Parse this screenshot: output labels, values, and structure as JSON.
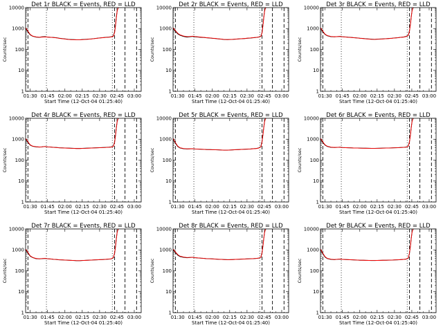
{
  "chart_data": {
    "type": "line",
    "shared": {
      "title_suffix": "BLACK = Events, RED = LLD",
      "ylabel": "Counts/sec",
      "xlabel": "Start Time (12-Oct-04 01:25:40)",
      "x_tick_labels": [
        "01:30",
        "01:45",
        "02:00",
        "02:15",
        "02:30",
        "02:45",
        "03:00"
      ],
      "x_tick_minutes": [
        90,
        105,
        120,
        135,
        150,
        165,
        180
      ],
      "xlim_minutes": [
        86,
        186
      ],
      "yscale": "log",
      "ylim": [
        1,
        10000
      ],
      "y_tick_labels": [
        "1",
        "10",
        "100",
        "1000",
        "10000"
      ],
      "y_tick_values": [
        1,
        10,
        100,
        1000,
        10000
      ],
      "vertical_lines": [
        {
          "minute": 88,
          "style": "dashed"
        },
        {
          "minute": 104,
          "style": "dotted"
        },
        {
          "minute": 161,
          "style": "dotted"
        },
        {
          "minute": 163,
          "style": "dashed"
        },
        {
          "minute": 172,
          "style": "dashed"
        },
        {
          "minute": 182,
          "style": "dashed"
        }
      ],
      "series_names": [
        "Events",
        "LLD"
      ],
      "colors": {
        "Events": "#000000",
        "LLD": "#ff0000"
      },
      "x_minutes": [
        86,
        88,
        90,
        92,
        95,
        98,
        100,
        103,
        105,
        108,
        110,
        113,
        115,
        118,
        120,
        123,
        125,
        128,
        130,
        133,
        135,
        138,
        140,
        143,
        145,
        148,
        150,
        153,
        155,
        158,
        160,
        162,
        163,
        163.8,
        164.5,
        165.2,
        165.8,
        166.3
      ]
    },
    "panels": [
      {
        "title": "Det 1r",
        "events": [
          1000,
          700,
          500,
          430,
          390,
          380,
          400,
          410,
          390,
          380,
          375,
          360,
          345,
          330,
          320,
          305,
          300,
          295,
          290,
          290,
          300,
          305,
          310,
          320,
          330,
          345,
          355,
          370,
          380,
          390,
          400,
          450,
          700,
          1500,
          3500,
          7000,
          9000,
          10000
        ],
        "lld": [
          1100,
          750,
          520,
          440,
          400,
          385,
          390,
          395,
          390,
          380,
          370,
          355,
          340,
          325,
          315,
          300,
          295,
          292,
          288,
          288,
          295,
          300,
          308,
          318,
          328,
          342,
          352,
          365,
          375,
          385,
          395,
          430,
          650,
          1400,
          3300,
          6800,
          9000,
          10000
        ]
      },
      {
        "title": "Det 2r",
        "events": [
          1000,
          750,
          560,
          480,
          420,
          390,
          400,
          420,
          400,
          390,
          380,
          370,
          360,
          350,
          340,
          330,
          320,
          310,
          300,
          295,
          300,
          305,
          310,
          320,
          325,
          330,
          340,
          350,
          360,
          375,
          390,
          430,
          650,
          1500,
          3500,
          7000,
          9000,
          10000
        ],
        "lld": [
          1100,
          800,
          600,
          500,
          440,
          410,
          415,
          430,
          415,
          400,
          390,
          378,
          365,
          355,
          345,
          335,
          325,
          312,
          302,
          298,
          300,
          305,
          312,
          322,
          328,
          335,
          345,
          355,
          365,
          378,
          392,
          420,
          620,
          1400,
          3300,
          6800,
          9000,
          10000
        ]
      },
      {
        "title": "Det 3r",
        "events": [
          1000,
          700,
          520,
          450,
          410,
          400,
          410,
          420,
          405,
          395,
          385,
          375,
          365,
          355,
          345,
          335,
          325,
          315,
          310,
          305,
          310,
          315,
          320,
          328,
          335,
          345,
          355,
          365,
          380,
          395,
          420,
          480,
          800,
          1600,
          3600,
          7000,
          9000,
          10000
        ],
        "lld": [
          1100,
          750,
          540,
          460,
          420,
          405,
          412,
          418,
          402,
          392,
          382,
          372,
          362,
          352,
          342,
          332,
          322,
          312,
          306,
          302,
          308,
          312,
          318,
          326,
          332,
          342,
          352,
          362,
          376,
          390,
          410,
          470,
          760,
          1550,
          3500,
          6900,
          9000,
          10000
        ]
      },
      {
        "title": "Det 4r",
        "events": [
          1000,
          700,
          520,
          460,
          430,
          420,
          430,
          450,
          430,
          420,
          410,
          400,
          390,
          385,
          380,
          375,
          370,
          365,
          360,
          360,
          365,
          370,
          375,
          380,
          385,
          390,
          395,
          400,
          405,
          415,
          425,
          470,
          750,
          1600,
          3600,
          7000,
          9000,
          10000
        ],
        "lld": [
          1100,
          750,
          540,
          470,
          440,
          425,
          432,
          448,
          428,
          418,
          408,
          398,
          388,
          382,
          378,
          372,
          366,
          362,
          358,
          358,
          362,
          366,
          372,
          378,
          382,
          388,
          392,
          398,
          402,
          412,
          420,
          455,
          720,
          1550,
          3500,
          6900,
          9000,
          10000
        ]
      },
      {
        "title": "Det 5r",
        "events": [
          1000,
          650,
          450,
          380,
          350,
          340,
          345,
          350,
          340,
          335,
          330,
          325,
          320,
          318,
          315,
          312,
          310,
          305,
          300,
          300,
          305,
          310,
          315,
          320,
          325,
          330,
          335,
          340,
          350,
          360,
          380,
          440,
          800,
          1700,
          3700,
          7100,
          9000,
          10000
        ],
        "lld": [
          1100,
          700,
          470,
          390,
          360,
          345,
          348,
          352,
          342,
          336,
          331,
          326,
          321,
          318,
          315,
          312,
          309,
          304,
          300,
          300,
          304,
          309,
          314,
          319,
          324,
          329,
          334,
          339,
          348,
          358,
          375,
          430,
          760,
          1650,
          3600,
          7000,
          9000,
          10000
        ]
      },
      {
        "title": "Det 6r",
        "events": [
          1000,
          700,
          520,
          450,
          410,
          400,
          405,
          415,
          400,
          395,
          390,
          385,
          380,
          378,
          375,
          372,
          370,
          368,
          365,
          365,
          368,
          372,
          375,
          378,
          380,
          385,
          390,
          395,
          400,
          410,
          420,
          470,
          780,
          1600,
          3600,
          7000,
          9000,
          10000
        ],
        "lld": [
          1100,
          750,
          540,
          460,
          420,
          405,
          408,
          414,
          400,
          394,
          389,
          384,
          379,
          376,
          373,
          370,
          368,
          366,
          363,
          363,
          366,
          370,
          373,
          376,
          378,
          383,
          388,
          393,
          398,
          408,
          416,
          460,
          750,
          1550,
          3500,
          6900,
          9000,
          10000
        ]
      },
      {
        "title": "Det 7r",
        "events": [
          1000,
          700,
          500,
          430,
          380,
          370,
          380,
          390,
          375,
          365,
          355,
          345,
          335,
          330,
          325,
          320,
          315,
          310,
          305,
          305,
          310,
          315,
          320,
          325,
          330,
          335,
          340,
          345,
          350,
          360,
          370,
          420,
          700,
          1500,
          3500,
          7000,
          9000,
          10000
        ],
        "lld": [
          1100,
          750,
          520,
          440,
          390,
          375,
          384,
          392,
          376,
          366,
          356,
          346,
          336,
          331,
          326,
          321,
          316,
          311,
          306,
          306,
          311,
          316,
          321,
          326,
          331,
          336,
          341,
          346,
          352,
          362,
          372,
          440,
          720,
          1520,
          3500,
          6900,
          9000,
          10000
        ]
      },
      {
        "title": "Det 8r",
        "events": [
          1000,
          750,
          560,
          480,
          440,
          420,
          430,
          440,
          420,
          410,
          400,
          390,
          380,
          375,
          370,
          360,
          355,
          350,
          345,
          340,
          340,
          345,
          350,
          355,
          360,
          365,
          370,
          375,
          380,
          390,
          400,
          440,
          750,
          1600,
          3600,
          7000,
          9000,
          10000
        ],
        "lld": [
          1100,
          800,
          600,
          500,
          455,
          430,
          436,
          444,
          424,
          412,
          402,
          392,
          382,
          376,
          370,
          362,
          356,
          350,
          345,
          340,
          341,
          346,
          351,
          356,
          361,
          366,
          371,
          376,
          382,
          392,
          402,
          445,
          730,
          1550,
          3500,
          6900,
          9000,
          10000
        ]
      },
      {
        "title": "Det 9r",
        "events": [
          1000,
          650,
          450,
          380,
          350,
          340,
          350,
          360,
          350,
          345,
          340,
          335,
          330,
          325,
          320,
          318,
          315,
          312,
          310,
          310,
          312,
          315,
          318,
          320,
          322,
          325,
          330,
          335,
          340,
          350,
          360,
          400,
          700,
          1500,
          3500,
          7000,
          9000,
          10000
        ],
        "lld": [
          1100,
          700,
          470,
          390,
          360,
          345,
          354,
          362,
          351,
          346,
          341,
          336,
          331,
          326,
          321,
          319,
          316,
          313,
          311,
          311,
          313,
          316,
          319,
          321,
          323,
          326,
          331,
          336,
          341,
          351,
          361,
          410,
          720,
          1520,
          3500,
          6900,
          9000,
          10000
        ]
      }
    ]
  }
}
